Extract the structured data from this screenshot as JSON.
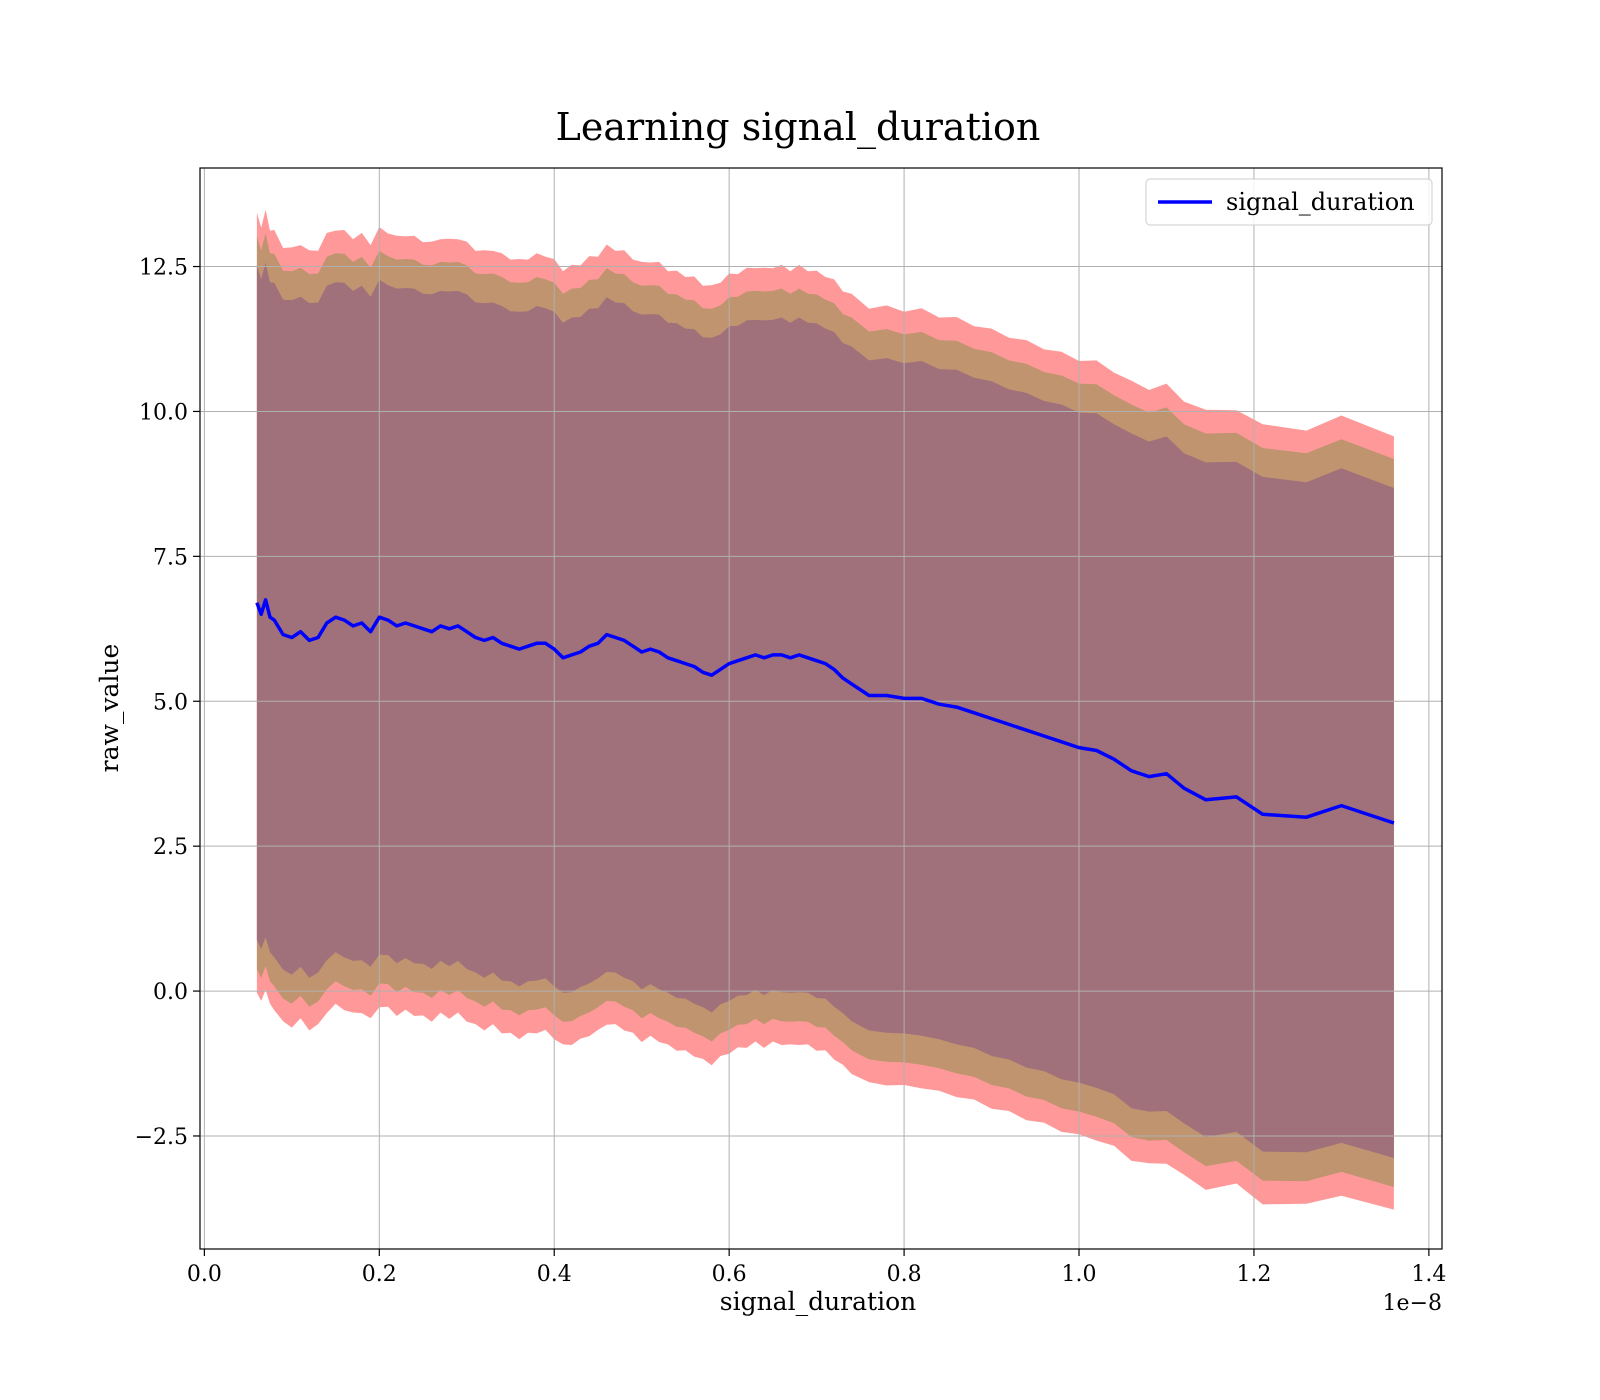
{
  "chart_data": {
    "type": "line",
    "title": "Learning signal_duration",
    "xlabel": "signal_duration",
    "ylabel": "raw_value",
    "x_offset_label": "1e−8",
    "xlim": [
      -0.005,
      1.415
    ],
    "ylim": [
      -4.45,
      14.2
    ],
    "x_ticks": [
      0.0,
      0.2,
      0.4,
      0.6,
      0.8,
      1.0,
      1.2,
      1.4
    ],
    "x_tick_labels": [
      "0.0",
      "0.2",
      "0.4",
      "0.6",
      "0.8",
      "1.0",
      "1.2",
      "1.4"
    ],
    "y_ticks": [
      -2.5,
      0.0,
      2.5,
      5.0,
      7.5,
      10.0,
      12.5
    ],
    "y_tick_labels": [
      "−2.5",
      "0.0",
      "2.5",
      "5.0",
      "7.5",
      "10.0",
      "12.5"
    ],
    "grid": true,
    "legend": {
      "position": "top-right",
      "entries": [
        "signal_duration"
      ]
    },
    "colors": {
      "line": "#0000ff",
      "band_outer": "#ff9999",
      "band_mid": "#c0946f",
      "band_inner": "#a0717a"
    },
    "band_half_widths": {
      "outer": 6.7,
      "mid": 6.3,
      "inner": 5.8
    },
    "series": [
      {
        "name": "signal_duration",
        "x": [
          0.06,
          0.065,
          0.07,
          0.075,
          0.08,
          0.09,
          0.1,
          0.11,
          0.12,
          0.13,
          0.14,
          0.15,
          0.16,
          0.17,
          0.18,
          0.19,
          0.2,
          0.21,
          0.22,
          0.23,
          0.24,
          0.25,
          0.26,
          0.27,
          0.28,
          0.29,
          0.3,
          0.31,
          0.32,
          0.33,
          0.34,
          0.35,
          0.36,
          0.37,
          0.38,
          0.39,
          0.4,
          0.41,
          0.42,
          0.43,
          0.44,
          0.45,
          0.46,
          0.47,
          0.48,
          0.49,
          0.5,
          0.51,
          0.52,
          0.53,
          0.54,
          0.55,
          0.56,
          0.57,
          0.58,
          0.59,
          0.6,
          0.61,
          0.62,
          0.63,
          0.64,
          0.65,
          0.66,
          0.67,
          0.68,
          0.69,
          0.7,
          0.71,
          0.72,
          0.73,
          0.74,
          0.76,
          0.78,
          0.8,
          0.82,
          0.84,
          0.86,
          0.88,
          0.9,
          0.92,
          0.94,
          0.96,
          0.98,
          1.0,
          1.02,
          1.04,
          1.06,
          1.08,
          1.1,
          1.12,
          1.145,
          1.18,
          1.21,
          1.26,
          1.3,
          1.36
        ],
        "values": [
          6.7,
          6.5,
          6.75,
          6.45,
          6.4,
          6.15,
          6.1,
          6.2,
          6.05,
          6.1,
          6.35,
          6.45,
          6.4,
          6.3,
          6.35,
          6.2,
          6.45,
          6.4,
          6.3,
          6.35,
          6.3,
          6.25,
          6.2,
          6.3,
          6.25,
          6.3,
          6.2,
          6.1,
          6.05,
          6.1,
          6.0,
          5.95,
          5.9,
          5.95,
          6.0,
          6.0,
          5.9,
          5.75,
          5.8,
          5.85,
          5.95,
          6.0,
          6.15,
          6.1,
          6.05,
          5.95,
          5.85,
          5.9,
          5.85,
          5.75,
          5.7,
          5.65,
          5.6,
          5.5,
          5.45,
          5.55,
          5.65,
          5.7,
          5.75,
          5.8,
          5.75,
          5.8,
          5.8,
          5.75,
          5.8,
          5.75,
          5.7,
          5.65,
          5.55,
          5.4,
          5.3,
          5.1,
          5.1,
          5.05,
          5.05,
          4.95,
          4.9,
          4.8,
          4.7,
          4.6,
          4.5,
          4.4,
          4.3,
          4.2,
          4.15,
          4.0,
          3.8,
          3.7,
          3.75,
          3.5,
          3.3,
          3.35,
          3.05,
          3.0,
          3.2,
          2.9
        ]
      }
    ]
  }
}
